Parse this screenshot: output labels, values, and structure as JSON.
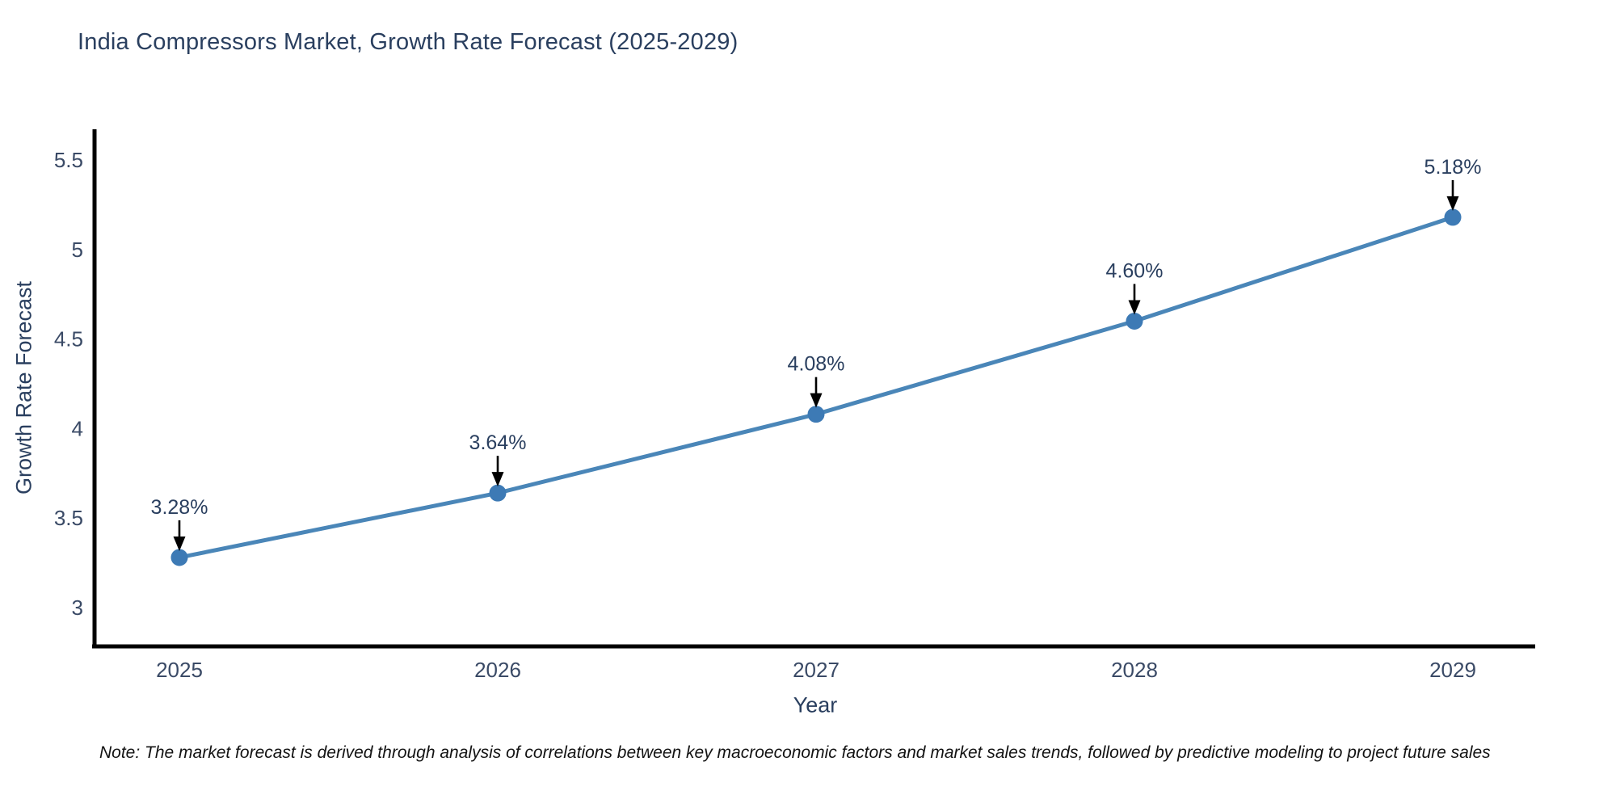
{
  "title": {
    "text": "India Compressors Market, Growth Rate Forecast (2025-2029)"
  },
  "note": {
    "text": "Note: The market forecast is derived through analysis of correlations between key macroeconomic factors and market sales trends, followed by predictive modeling to project future sales"
  },
  "chart_data": {
    "type": "line",
    "title": "India Compressors Market, Growth Rate Forecast (2025-2029)",
    "xlabel": "Year",
    "ylabel": "Growth Rate Forecast",
    "categories": [
      "2025",
      "2026",
      "2027",
      "2028",
      "2029"
    ],
    "x": [
      2025,
      2026,
      2027,
      2028,
      2029
    ],
    "series": [
      {
        "name": "Growth Rate Forecast",
        "values": [
          3.28,
          3.64,
          4.08,
          4.6,
          5.18
        ]
      }
    ],
    "point_labels": [
      "3.28%",
      "3.64%",
      "4.08%",
      "4.60%",
      "5.18%"
    ],
    "y_ticks": [
      3,
      3.5,
      4,
      4.5,
      5,
      5.5
    ],
    "y_tick_labels": [
      "3",
      "3.5",
      "4",
      "4.5",
      "5",
      "5.5"
    ],
    "ylim": [
      2.78,
      5.67
    ],
    "grid": false,
    "legend": false,
    "annotations_have_arrows": true
  },
  "colors": {
    "title": "#2a3f5f",
    "tick_label": "#3a4a66",
    "annotation_text": "#2a3f5f",
    "axis_spine": "#000000",
    "line": "#4a86b8",
    "marker": "#3d7ab5",
    "arrow": "#000000",
    "background": "#ffffff"
  }
}
